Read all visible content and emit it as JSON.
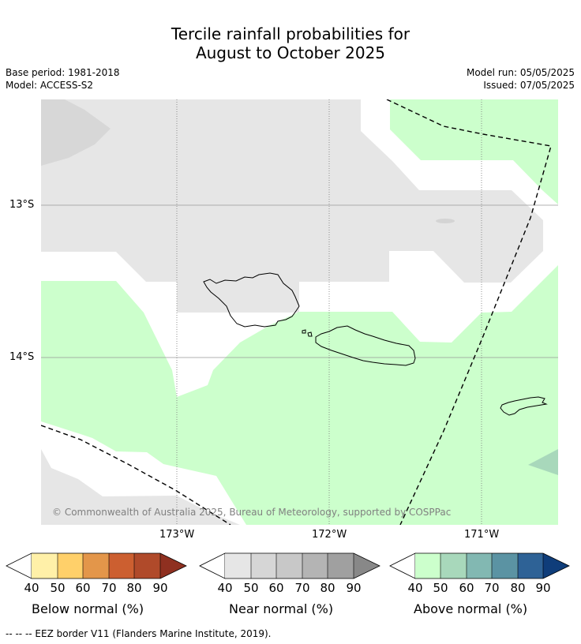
{
  "title_line1": "Tercile rainfall probabilities for",
  "title_line2": "August to October 2025",
  "base_period": "Base period: 1981-2018",
  "model": "Model: ACCESS-S2",
  "model_run": "Model run: 05/05/2025",
  "issued": "Issued: 07/05/2025",
  "copyright": "© Commonwealth of Australia 2025, Bureau of Meteorology, supported by COSPPac",
  "lat_labels": [
    "13°S",
    "14°S"
  ],
  "lon_labels": [
    "173°W",
    "172°W",
    "171°W"
  ],
  "colorbars": [
    {
      "label": "Below normal (%)",
      "ticks": [
        "40",
        "50",
        "60",
        "70",
        "80",
        "90"
      ],
      "colors": [
        "#fff0a8",
        "#ffd06a",
        "#e3964a",
        "#cc5f30",
        "#b04a2a",
        "#8f3020"
      ]
    },
    {
      "label": "Near normal (%)",
      "ticks": [
        "40",
        "50",
        "60",
        "70",
        "80",
        "90"
      ],
      "colors": [
        "#e6e6e6",
        "#d6d6d6",
        "#c8c8c8",
        "#b4b4b4",
        "#a0a0a0",
        "#888888"
      ]
    },
    {
      "label": "Above normal (%)",
      "ticks": [
        "40",
        "50",
        "60",
        "70",
        "80",
        "90"
      ],
      "colors": [
        "#ccffcc",
        "#a8d8bb",
        "#82b8b2",
        "#5b93a3",
        "#2e6296",
        "#0f3d7a"
      ]
    }
  ],
  "footer": "--  --  -- EEZ border V11 (Flanders Marine Institute, 2019)."
}
